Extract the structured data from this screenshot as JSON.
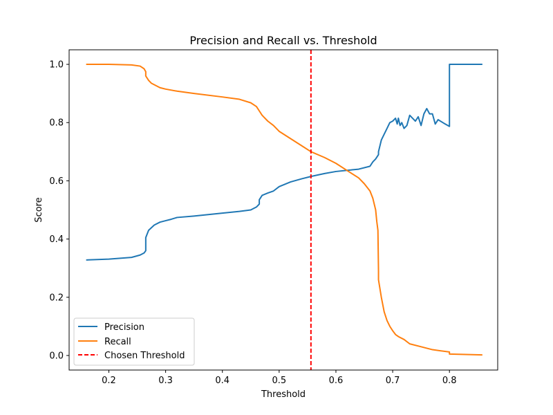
{
  "chart_data": {
    "type": "line",
    "title": "Precision and Recall vs. Threshold",
    "xlabel": "Threshold",
    "ylabel": "Score",
    "xlim": [
      0.13,
      0.885
    ],
    "ylim": [
      -0.05,
      1.05
    ],
    "xticks": [
      0.2,
      0.3,
      0.4,
      0.5,
      0.6,
      0.7,
      0.8
    ],
    "xtick_labels": [
      "0.2",
      "0.3",
      "0.4",
      "0.5",
      "0.6",
      "0.7",
      "0.8"
    ],
    "yticks": [
      0.0,
      0.2,
      0.4,
      0.6,
      0.8,
      1.0
    ],
    "ytick_labels": [
      "0.0",
      "0.2",
      "0.4",
      "0.6",
      "0.8",
      "1.0"
    ],
    "grid": false,
    "legend_position": "lower-left",
    "series": [
      {
        "name": "Precision",
        "color": "#1f77b4",
        "style": "solid",
        "x": [
          0.16,
          0.2,
          0.24,
          0.255,
          0.262,
          0.265,
          0.265,
          0.27,
          0.28,
          0.29,
          0.3,
          0.31,
          0.32,
          0.35,
          0.4,
          0.43,
          0.45,
          0.46,
          0.465,
          0.465,
          0.47,
          0.48,
          0.49,
          0.5,
          0.52,
          0.54,
          0.556,
          0.58,
          0.6,
          0.62,
          0.64,
          0.66,
          0.665,
          0.67,
          0.675,
          0.675,
          0.68,
          0.685,
          0.69,
          0.695,
          0.7,
          0.705,
          0.708,
          0.71,
          0.713,
          0.716,
          0.72,
          0.725,
          0.73,
          0.735,
          0.74,
          0.745,
          0.75,
          0.755,
          0.76,
          0.765,
          0.77,
          0.775,
          0.78,
          0.79,
          0.8,
          0.8,
          0.858
        ],
        "y": [
          0.328,
          0.331,
          0.337,
          0.345,
          0.352,
          0.36,
          0.405,
          0.43,
          0.448,
          0.458,
          0.463,
          0.468,
          0.474,
          0.479,
          0.489,
          0.495,
          0.5,
          0.51,
          0.52,
          0.535,
          0.55,
          0.558,
          0.565,
          0.58,
          0.596,
          0.607,
          0.615,
          0.625,
          0.632,
          0.636,
          0.64,
          0.65,
          0.665,
          0.675,
          0.69,
          0.7,
          0.74,
          0.76,
          0.78,
          0.8,
          0.805,
          0.815,
          0.795,
          0.815,
          0.79,
          0.8,
          0.78,
          0.79,
          0.825,
          0.815,
          0.805,
          0.82,
          0.79,
          0.83,
          0.848,
          0.83,
          0.83,
          0.795,
          0.81,
          0.798,
          0.787,
          1.0,
          1.0
        ]
      },
      {
        "name": "Recall",
        "color": "#ff7f0e",
        "style": "solid",
        "x": [
          0.16,
          0.2,
          0.24,
          0.255,
          0.262,
          0.265,
          0.265,
          0.27,
          0.275,
          0.28,
          0.29,
          0.3,
          0.32,
          0.35,
          0.4,
          0.43,
          0.45,
          0.46,
          0.465,
          0.47,
          0.48,
          0.49,
          0.5,
          0.52,
          0.54,
          0.556,
          0.58,
          0.6,
          0.62,
          0.64,
          0.65,
          0.66,
          0.665,
          0.67,
          0.672,
          0.674,
          0.675,
          0.675,
          0.68,
          0.685,
          0.69,
          0.695,
          0.7,
          0.705,
          0.71,
          0.72,
          0.73,
          0.75,
          0.77,
          0.8,
          0.8,
          0.858
        ],
        "y": [
          1.0,
          1.0,
          0.998,
          0.994,
          0.985,
          0.975,
          0.96,
          0.945,
          0.935,
          0.93,
          0.92,
          0.915,
          0.908,
          0.9,
          0.888,
          0.88,
          0.868,
          0.855,
          0.84,
          0.825,
          0.805,
          0.79,
          0.77,
          0.745,
          0.72,
          0.7,
          0.68,
          0.66,
          0.635,
          0.61,
          0.59,
          0.565,
          0.54,
          0.5,
          0.46,
          0.43,
          0.29,
          0.26,
          0.2,
          0.15,
          0.12,
          0.1,
          0.085,
          0.072,
          0.065,
          0.055,
          0.04,
          0.03,
          0.02,
          0.012,
          0.005,
          0.002
        ]
      },
      {
        "name": "Chosen Threshold",
        "color": "#ff0000",
        "style": "dashed",
        "x": 0.556
      }
    ]
  }
}
